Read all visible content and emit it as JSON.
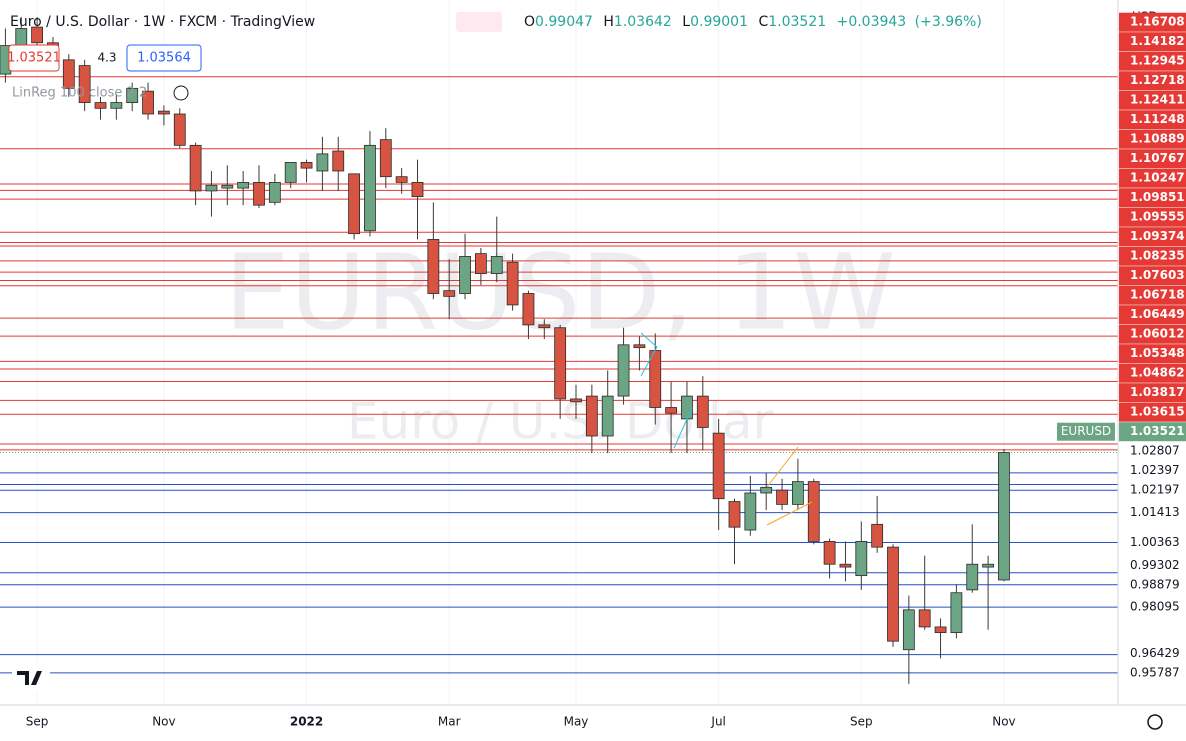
{
  "header": {
    "title": "Euro / U.S. Dollar · 1W · FXCM · TradingView",
    "ohlc_labels": [
      "O",
      "H",
      "L",
      "C"
    ],
    "change": "+0.03943",
    "change_pct": "(+3.96%)"
  },
  "trade_panel": {
    "sell": "1.03521",
    "spread": "4.3",
    "buy": "1.03564"
  },
  "indicator": "LinReg 100 close 2 2",
  "watermark": {
    "symbol": "EURUSD, 1W",
    "name": "Euro / U.S. Dollar"
  },
  "currency": "USD",
  "chart_data": {
    "type": "candlestick",
    "categories": [
      null,
      null,
      "Sep",
      null,
      null,
      null,
      null,
      null,
      null,
      null,
      "Nov",
      null,
      null,
      null,
      null,
      null,
      null,
      null,
      null,
      "2022",
      null,
      null,
      null,
      null,
      null,
      null,
      null,
      null,
      "Mar",
      null,
      null,
      null,
      null,
      null,
      null,
      null,
      "May",
      null,
      null,
      null,
      null,
      null,
      null,
      null,
      null,
      "Jul",
      null,
      null,
      null,
      null,
      null,
      null,
      null,
      null,
      "Sep",
      null,
      null,
      null,
      null,
      null,
      null,
      null,
      null,
      "Nov"
    ],
    "series": [
      {
        "name": "EURUSD",
        "up_color": "#6ba583",
        "down_color": "#d75442",
        "open": [
          1.168,
          1.178,
          1.1845,
          1.179,
          1.173,
          1.171,
          1.158,
          1.156,
          1.158,
          1.162,
          1.155,
          1.154,
          1.143,
          1.127,
          1.128,
          1.128,
          1.13,
          1.123,
          1.13,
          1.137,
          1.134,
          1.141,
          1.133,
          1.113,
          1.145,
          1.132,
          1.13,
          1.11,
          1.092,
          1.091,
          1.105,
          1.098,
          1.102,
          1.091,
          1.08,
          1.079,
          1.054,
          1.055,
          1.041,
          1.055,
          1.073,
          1.071,
          1.051,
          1.047,
          1.055,
          1.042,
          1.018,
          1.008,
          1.021,
          1.022,
          1.017,
          1.025,
          1.004,
          0.996,
          0.992,
          1.01,
          1.002,
          0.966,
          0.98,
          0.974,
          0.972,
          0.987,
          0.995,
          0.99047
        ],
        "high": [
          1.184,
          1.188,
          1.188,
          1.181,
          1.175,
          1.173,
          1.16,
          1.161,
          1.165,
          1.165,
          1.157,
          1.156,
          1.144,
          1.134,
          1.136,
          1.134,
          1.136,
          1.133,
          1.137,
          1.138,
          1.146,
          1.146,
          1.133,
          1.148,
          1.149,
          1.135,
          1.138,
          1.123,
          1.103,
          1.112,
          1.107,
          1.118,
          1.105,
          1.092,
          1.082,
          1.08,
          1.059,
          1.059,
          1.064,
          1.079,
          1.076,
          1.077,
          1.06,
          1.06,
          1.062,
          1.047,
          1.019,
          1.027,
          1.028,
          1.026,
          1.033,
          1.026,
          1.005,
          1.004,
          1.011,
          1.02,
          1.003,
          0.985,
          0.999,
          0.977,
          0.989,
          1.01,
          0.999,
          1.03642
        ],
        "low": [
          1.165,
          1.176,
          1.175,
          1.17,
          1.16,
          1.155,
          1.152,
          1.152,
          1.155,
          1.152,
          1.15,
          1.142,
          1.122,
          1.118,
          1.122,
          1.122,
          1.121,
          1.122,
          1.128,
          1.13,
          1.127,
          1.127,
          1.11,
          1.111,
          1.128,
          1.126,
          1.11,
          1.089,
          1.082,
          1.089,
          1.094,
          1.095,
          1.085,
          1.075,
          1.075,
          1.047,
          1.047,
          1.035,
          1.035,
          1.052,
          1.064,
          1.045,
          1.035,
          1.035,
          1.036,
          1.008,
          0.996,
          1.006,
          1.015,
          1.015,
          1.015,
          1.003,
          0.991,
          0.99,
          0.987,
          1.0,
          0.967,
          0.954,
          0.973,
          0.963,
          0.97,
          0.986,
          0.973,
          0.99001
        ],
        "close": [
          1.178,
          1.184,
          1.179,
          1.173,
          1.163,
          1.158,
          1.156,
          1.158,
          1.163,
          1.154,
          1.154,
          1.143,
          1.127,
          1.129,
          1.129,
          1.13,
          1.122,
          1.13,
          1.137,
          1.135,
          1.14,
          1.134,
          1.112,
          1.143,
          1.132,
          1.13,
          1.125,
          1.091,
          1.09,
          1.104,
          1.098,
          1.104,
          1.087,
          1.08,
          1.079,
          1.054,
          1.053,
          1.041,
          1.055,
          1.073,
          1.072,
          1.051,
          1.049,
          1.055,
          1.044,
          1.019,
          1.009,
          1.021,
          1.023,
          1.017,
          1.025,
          1.004,
          0.996,
          0.995,
          1.004,
          1.002,
          0.969,
          0.98,
          0.974,
          0.972,
          0.986,
          0.996,
          0.996,
          1.03521
        ]
      }
    ],
    "ylim": [
      0.9466,
      1.194
    ],
    "grid": true,
    "levels": {
      "above": {
        "color": "#e53935",
        "values": [
          1.16708,
          1.14182,
          1.12945,
          1.12718,
          1.12411,
          1.11248,
          1.10889,
          1.10767,
          1.10247,
          1.09851,
          1.09555,
          1.09374,
          1.08235,
          1.07603,
          1.06718,
          1.06449,
          1.06012,
          1.05348,
          1.04862,
          1.03817,
          1.03615
        ]
      },
      "below": {
        "color": "#2451c9",
        "values": [
          1.02807,
          1.02397,
          1.02197,
          1.01413,
          1.00363,
          0.99302,
          0.98879,
          0.98095,
          0.96429,
          0.95787
        ]
      }
    }
  }
}
